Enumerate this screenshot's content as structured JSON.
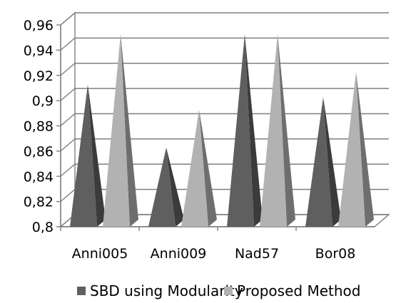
{
  "chart_data": {
    "type": "bar",
    "style": "3d-pyramid",
    "categories": [
      "Anni005",
      "Anni009",
      "Nad57",
      "Bor08"
    ],
    "series": [
      {
        "name": "SBD using Modularity",
        "values": [
          0.91,
          0.86,
          0.95,
          0.9
        ],
        "color": "#5f5f5f"
      },
      {
        "name": "Proposed Method",
        "values": [
          0.95,
          0.89,
          0.95,
          0.92
        ],
        "color": "#b2b2b2"
      }
    ],
    "yticks": [
      "0,8",
      "0,82",
      "0,84",
      "0,86",
      "0,88",
      "0,9",
      "0,92",
      "0,94",
      "0,96"
    ],
    "ylim": [
      0.8,
      0.96
    ],
    "grid": true,
    "legend": "bottom"
  }
}
